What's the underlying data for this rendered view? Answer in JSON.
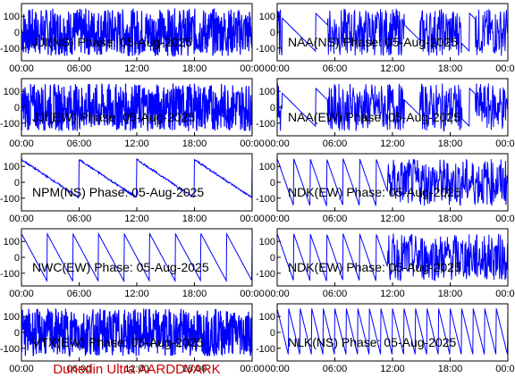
{
  "footer": "Dunedin Ultra AARDDVARK",
  "colors": {
    "trace": "#0000ff",
    "axis": "#000000",
    "footer": "#cc0000"
  },
  "chart_data": [
    {
      "type": "line",
      "title": "JJI(NS) Phase: 05-Aug-2025",
      "pattern": "dense",
      "x_ticks": [
        "00:00",
        "06:00",
        "12:00",
        "18:00",
        "00:00"
      ],
      "y_ticks": [
        "100",
        "0",
        "-100"
      ],
      "xlim": [
        0,
        24
      ],
      "ylim": [
        -180,
        180
      ]
    },
    {
      "type": "line",
      "title": "NAA(NS) Phase: 05-Aug-2025",
      "pattern": "mixed",
      "x_ticks": [
        "00:00",
        "06:00",
        "12:00",
        "18:00",
        "00:00"
      ],
      "y_ticks": [
        "100",
        "0",
        "-100"
      ],
      "xlim": [
        0,
        24
      ],
      "ylim": [
        -180,
        180
      ]
    },
    {
      "type": "line",
      "title": "JJI(EW) Phase: 05-Aug-2025",
      "pattern": "dense",
      "x_ticks": [
        "00:00",
        "06:00",
        "12:00",
        "18:00",
        "00:00"
      ],
      "y_ticks": [
        "100",
        "0",
        "-100"
      ],
      "xlim": [
        0,
        24
      ],
      "ylim": [
        -180,
        180
      ]
    },
    {
      "type": "line",
      "title": "NAA(EW) Phase: 05-Aug-2025",
      "pattern": "mixed",
      "x_ticks": [
        "00:00",
        "06:00",
        "12:00",
        "18:00",
        "00:00"
      ],
      "y_ticks": [
        "100",
        "0",
        "-100"
      ],
      "xlim": [
        0,
        24
      ],
      "ylim": [
        -180,
        180
      ]
    },
    {
      "type": "line",
      "title": "NPM(NS) Phase: 05-Aug-2025",
      "pattern": "drift_slow",
      "x_ticks": [
        "00:00",
        "06:00",
        "12:00",
        "18:00",
        "00:00"
      ],
      "y_ticks": [
        "100",
        "0",
        "-100"
      ],
      "xlim": [
        0,
        24
      ],
      "ylim": [
        -180,
        180
      ]
    },
    {
      "type": "line",
      "title": "NDK(EW) Phase: 05-Aug-2025",
      "pattern": "sawtooth_dense",
      "x_ticks": [
        "00:00",
        "06:00",
        "12:00",
        "18:00",
        "00:00"
      ],
      "y_ticks": [
        "100",
        "0",
        "-100"
      ],
      "xlim": [
        0,
        24
      ],
      "ylim": [
        -180,
        180
      ]
    },
    {
      "type": "line",
      "title": "NWC(EW) Phase: 05-Aug-2025",
      "pattern": "sawtooth",
      "x_ticks": [
        "00:00",
        "06:00",
        "12:00",
        "18:00",
        "00:00"
      ],
      "y_ticks": [
        "100",
        "0",
        "-100"
      ],
      "xlim": [
        0,
        24
      ],
      "ylim": [
        -180,
        180
      ]
    },
    {
      "type": "line",
      "title": "NDK(EW) Phase: 05-Aug-2025",
      "pattern": "sawtooth_dense",
      "x_ticks": [
        "00:00",
        "06:00",
        "12:00",
        "18:00",
        "00:00"
      ],
      "y_ticks": [
        "100",
        "0",
        "-100"
      ],
      "xlim": [
        0,
        24
      ],
      "ylim": [
        -180,
        180
      ]
    },
    {
      "type": "line",
      "title": "VTX(EW) Phase: 05-Aug-2025",
      "pattern": "dense",
      "x_ticks": [
        "00:00",
        "06:00",
        "12:00",
        "18:00",
        "00:00"
      ],
      "y_ticks": [
        "100",
        "0",
        "-100"
      ],
      "xlim": [
        0,
        24
      ],
      "ylim": [
        -180,
        180
      ]
    },
    {
      "type": "line",
      "title": "NLK(NS) Phase: 05-Aug-2025",
      "pattern": "sawtooth_fast",
      "x_ticks": [
        "00:00",
        "06:00",
        "12:00",
        "18:00",
        "00:00"
      ],
      "y_ticks": [
        "100",
        "0",
        "-100"
      ],
      "xlim": [
        0,
        24
      ],
      "ylim": [
        -180,
        180
      ]
    }
  ]
}
